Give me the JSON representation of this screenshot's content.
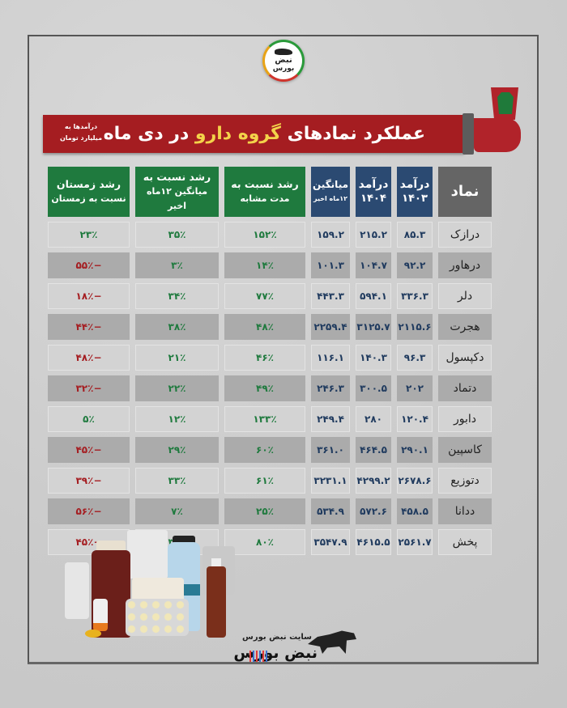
{
  "logo": {
    "line1": "نبض",
    "line2": "بورس"
  },
  "banner": {
    "title_part1": "عملکرد نمادهای ",
    "title_highlight": "گروه دارو",
    "title_part2": " در دی ماه",
    "note_line1": "درآمدها به",
    "note_line2": "میلیارد تومان",
    "colors": {
      "banner": "#a51d21",
      "highlight": "#f3d34a"
    }
  },
  "table": {
    "headers": {
      "symbol": "نماد",
      "rev1403": {
        "line1": "درآمد",
        "line2": "۱۴۰۳"
      },
      "rev1404": {
        "line1": "درآمد",
        "line2": "۱۴۰۴"
      },
      "avg12": {
        "line1": "میانگین",
        "line2": "۱۲ماه اخیر"
      },
      "growth_same_period": {
        "line1": "رشد نسبت به",
        "line2": "مدت مشابه"
      },
      "growth_vs_avg": {
        "line1": "رشد نسبت به",
        "line2": "میانگین ۱۲ماه اخیر"
      },
      "growth_winter": {
        "line1": "رشد  زمستان",
        "line2": "نسبت به زمستان"
      }
    },
    "colors": {
      "blue_header": "#2b4a72",
      "green_header": "#1f7a3e",
      "positive": "#1f7a3e",
      "negative": "#a51d21"
    },
    "rows": [
      {
        "symbol": "درازک",
        "rev1403": "۸۵.۳",
        "rev1404": "۲۱۵.۲",
        "avg12": "۱۵۹.۲",
        "g_same": "۱۵۲٪",
        "g_avg": "۳۵٪",
        "g_winter": "۲۳٪"
      },
      {
        "symbol": "درهاور",
        "rev1403": "۹۲.۲",
        "rev1404": "۱۰۴.۷",
        "avg12": "۱۰۱.۳",
        "g_same": "۱۴٪",
        "g_avg": "۳٪",
        "g_winter": "−۵۵٪"
      },
      {
        "symbol": "دلر",
        "rev1403": "۳۳۶.۳",
        "rev1404": "۵۹۴.۱",
        "avg12": "۴۴۳.۳",
        "g_same": "۷۷٪",
        "g_avg": "۳۴٪",
        "g_winter": "−۱۸٪"
      },
      {
        "symbol": "هجرت",
        "rev1403": "۲۱۱۵.۶",
        "rev1404": "۳۱۲۵.۷",
        "avg12": "۲۲۵۹.۴",
        "g_same": "۴۸٪",
        "g_avg": "۳۸٪",
        "g_winter": "−۴۴٪"
      },
      {
        "symbol": "دکپسول",
        "rev1403": "۹۶.۳",
        "rev1404": "۱۴۰.۳",
        "avg12": "۱۱۶.۱",
        "g_same": "۴۶٪",
        "g_avg": "۲۱٪",
        "g_winter": "−۴۸٪"
      },
      {
        "symbol": "دتماد",
        "rev1403": "۲۰۲",
        "rev1404": "۳۰۰.۵",
        "avg12": "۲۴۶.۳",
        "g_same": "۴۹٪",
        "g_avg": "۲۲٪",
        "g_winter": "−۳۲٪"
      },
      {
        "symbol": "دابور",
        "rev1403": "۱۲۰.۴",
        "rev1404": "۲۸۰",
        "avg12": "۲۴۹.۴",
        "g_same": "۱۳۳٪",
        "g_avg": "۱۲٪",
        "g_winter": "۵٪"
      },
      {
        "symbol": "کاسپین",
        "rev1403": "۲۹۰.۱",
        "rev1404": "۴۶۴.۵",
        "avg12": "۳۶۱.۰",
        "g_same": "۶۰٪",
        "g_avg": "۲۹٪",
        "g_winter": "−۴۵٪"
      },
      {
        "symbol": "دتوزیع",
        "rev1403": "۲۶۷۸.۶",
        "rev1404": "۴۲۹۹.۲",
        "avg12": "۳۲۳۱.۱",
        "g_same": "۶۱٪",
        "g_avg": "۳۳٪",
        "g_winter": "−۳۹٪"
      },
      {
        "symbol": "ددانا",
        "rev1403": "۴۵۸.۵",
        "rev1404": "۵۷۲.۶",
        "avg12": "۵۳۴.۹",
        "g_same": "۲۵٪",
        "g_avg": "۷٪",
        "g_winter": "−۵۶٪"
      },
      {
        "symbol": "پخش",
        "rev1403": "۲۵۶۱.۷",
        "rev1404": "۴۶۱۵.۵",
        "avg12": "۳۵۴۷.۹",
        "g_same": "۸۰٪",
        "g_avg": "۳۰٪",
        "g_winter": "−۴۵٪"
      }
    ]
  },
  "footer": {
    "site_label": "سایت نبض بورس",
    "brand": "نبض بورس"
  },
  "chart_data": {
    "type": "table",
    "title": "عملکرد نمادهای گروه دارو در دی ماه",
    "subtitle": "درآمدها به میلیارد تومان",
    "columns": [
      "نماد",
      "درآمد ۱۴۰۳",
      "درآمد ۱۴۰۴",
      "میانگین ۱۲ماه اخیر",
      "رشد نسبت به مدت مشابه",
      "رشد نسبت به میانگین ۱۲ماه اخیر",
      "رشد زمستان نسبت به زمستان"
    ],
    "categories": [
      "درازک",
      "درهاور",
      "دلر",
      "هجرت",
      "دکپسول",
      "دتماد",
      "دابور",
      "کاسپین",
      "دتوزیع",
      "ددانا",
      "پخش"
    ],
    "series": [
      {
        "name": "درآمد ۱۴۰۳",
        "values": [
          85.3,
          92.2,
          336.3,
          2115.6,
          96.3,
          202,
          120.4,
          290.1,
          2678.6,
          458.5,
          2561.7
        ]
      },
      {
        "name": "درآمد ۱۴۰۴",
        "values": [
          215.2,
          104.7,
          594.1,
          3125.7,
          140.3,
          300.5,
          280,
          464.5,
          4299.2,
          572.6,
          4615.5
        ]
      },
      {
        "name": "میانگین ۱۲ماه اخیر",
        "values": [
          159.2,
          101.3,
          443.3,
          2259.4,
          116.1,
          246.3,
          249.4,
          361.0,
          3231.1,
          534.9,
          3547.9
        ]
      },
      {
        "name": "رشد نسبت به مدت مشابه (%)",
        "values": [
          152,
          14,
          77,
          48,
          46,
          49,
          133,
          60,
          61,
          25,
          80
        ]
      },
      {
        "name": "رشد نسبت به میانگین ۱۲ماه اخیر (%)",
        "values": [
          35,
          3,
          34,
          38,
          21,
          22,
          12,
          29,
          33,
          7,
          30
        ]
      },
      {
        "name": "رشد زمستان نسبت به زمستان (%)",
        "values": [
          23,
          -55,
          -18,
          -44,
          -48,
          -32,
          5,
          -45,
          -39,
          -56,
          -45
        ]
      }
    ]
  }
}
